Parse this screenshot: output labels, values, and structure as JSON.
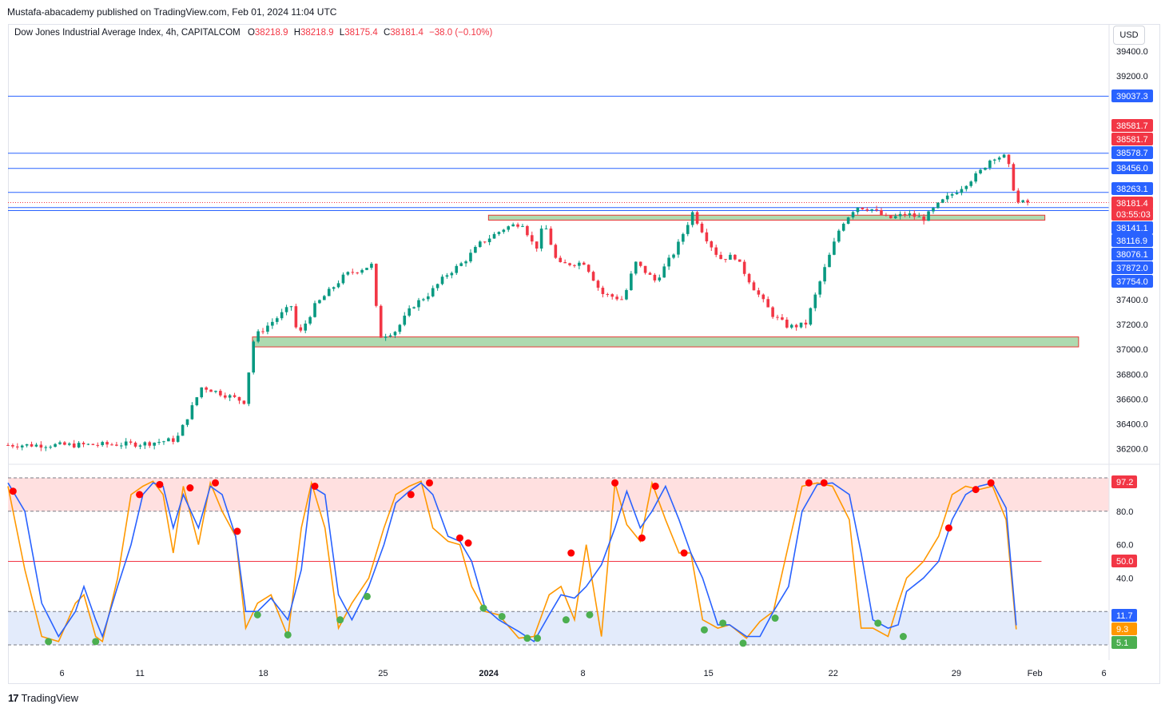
{
  "header": {
    "published": "Mustafa-abacademy published on TradingView.com, Feb 01, 2024 11:04 UTC"
  },
  "legend": {
    "symbol": "Dow Jones Industrial Average Index, 4h, CAPITALCOM",
    "o_label": "O",
    "o_value": "38218.9",
    "h_label": "H",
    "h_value": "38218.9",
    "l_label": "L",
    "l_value": "38175.4",
    "c_label": "C",
    "c_value": "38181.4",
    "change": "−38.0 (−0.10%)"
  },
  "currency": "USD",
  "footer": {
    "brand": "TradingView"
  },
  "colors": {
    "up": "#089981",
    "down": "#f23645",
    "hline": "#2962ff",
    "supply": "#a5d6a7",
    "osc_k": "#2962ff",
    "osc_d": "#ff9800",
    "ob_zone": "#ffe0e0",
    "os_zone": "#e3ebfb"
  },
  "chart_data": [
    {
      "type": "candlestick",
      "timeframe": "4h",
      "x_ticks": [
        "6",
        "11",
        "18",
        "25",
        "2024",
        "8",
        "15",
        "22",
        "29",
        "Feb",
        "6"
      ],
      "y_ticks": [
        39400.0,
        39200.0,
        37400.0,
        37200.0,
        37000.0,
        36800.0,
        36600.0,
        36400.0,
        36200.0
      ],
      "ylim": [
        36150,
        39520
      ],
      "close_path": [
        [
          0,
          36230
        ],
        [
          4,
          36230
        ],
        [
          8,
          36240
        ],
        [
          10,
          36275
        ],
        [
          11.5,
          36700
        ],
        [
          14,
          36580
        ],
        [
          14.6,
          37100
        ],
        [
          16.8,
          37350
        ],
        [
          17.2,
          37100
        ],
        [
          18.2,
          37350
        ],
        [
          20,
          37600
        ],
        [
          21.6,
          37680
        ],
        [
          22,
          37100
        ],
        [
          23,
          37150
        ],
        [
          24,
          37350
        ],
        [
          25,
          37450
        ],
        [
          26,
          37600
        ],
        [
          27,
          37700
        ],
        [
          28,
          37850
        ],
        [
          29.5,
          37980
        ],
        [
          30.5,
          38020
        ],
        [
          31.3,
          37800
        ],
        [
          31.8,
          38020
        ],
        [
          32.6,
          37680
        ],
        [
          34.2,
          37700
        ],
        [
          35.2,
          37450
        ],
        [
          36.5,
          37400
        ],
        [
          37.2,
          37700
        ],
        [
          38.4,
          37550
        ],
        [
          39.6,
          37800
        ],
        [
          40.6,
          38100
        ],
        [
          41.4,
          37900
        ],
        [
          42.2,
          37730
        ],
        [
          43.1,
          37750
        ],
        [
          44.3,
          37480
        ],
        [
          45.4,
          37270
        ],
        [
          46.3,
          37180
        ],
        [
          47.3,
          37200
        ],
        [
          48.3,
          37600
        ],
        [
          49.4,
          38000
        ],
        [
          50.3,
          38150
        ],
        [
          51.2,
          38130
        ],
        [
          52.2,
          38050
        ],
        [
          53.3,
          38090
        ],
        [
          54.3,
          38050
        ],
        [
          55.3,
          38180
        ],
        [
          56.5,
          38300
        ],
        [
          57.6,
          38420
        ],
        [
          58.4,
          38550
        ],
        [
          59.2,
          38550
        ],
        [
          59.5,
          38400
        ],
        [
          59.8,
          38180
        ],
        [
          60.5,
          38181.4
        ]
      ],
      "hlines": [
        39037.3,
        38578.7,
        38456.0,
        38263.1,
        38141.1,
        38116.9
      ],
      "price_labels": [
        {
          "value": "39037.3",
          "color": "#2962ff"
        },
        {
          "value": "38581.7",
          "color": "#f23645"
        },
        {
          "value": "38581.7",
          "color": "#f23645"
        },
        {
          "value": "38578.7",
          "color": "#2962ff"
        },
        {
          "value": "38456.0",
          "color": "#2962ff"
        },
        {
          "value": "38263.1",
          "color": "#2962ff"
        },
        {
          "value": "38181.4",
          "color": "#f23645"
        },
        {
          "value": "03:55:03",
          "color": "#f23645"
        },
        {
          "value": "38141.1",
          "color": "#2962ff"
        },
        {
          "value": "38116.9",
          "color": "#2962ff"
        },
        {
          "value": "38076.1",
          "color": "#2962ff"
        },
        {
          "value": "37872.0",
          "color": "#2962ff"
        },
        {
          "value": "37754.0",
          "color": "#2962ff"
        }
      ],
      "zones": [
        {
          "from": 38040,
          "to": 38080,
          "x_start": 28.5,
          "x_end": 61.5
        },
        {
          "from": 37020,
          "to": 37100,
          "x_start": 14.5,
          "x_end": 63.5
        }
      ]
    },
    {
      "type": "line",
      "name": "Stochastic RSI",
      "y_ticks": [
        80.0,
        60.0,
        40.0
      ],
      "ylim": [
        0,
        100
      ],
      "levels": [
        100,
        80,
        50,
        20,
        0
      ],
      "value_labels": [
        {
          "value": "97.2",
          "color": "#f23645"
        },
        {
          "value": "50.0",
          "color": "#f23645"
        },
        {
          "value": "11.7",
          "color": "#2962ff"
        },
        {
          "value": "9.3",
          "color": "#ff9800"
        },
        {
          "value": "5.1",
          "color": "#4caf50"
        }
      ],
      "series": [
        {
          "color": "#ff9800",
          "points": [
            [
              0,
              95
            ],
            [
              1,
              45
            ],
            [
              2,
              5
            ],
            [
              3,
              2
            ],
            [
              4,
              25
            ],
            [
              4.5,
              30
            ],
            [
              5.2,
              5
            ],
            [
              5.6,
              2
            ],
            [
              6.5,
              40
            ],
            [
              7.3,
              90
            ],
            [
              8,
              95
            ],
            [
              8.6,
              98
            ],
            [
              9.2,
              90
            ],
            [
              9.8,
              55
            ],
            [
              10.4,
              95
            ],
            [
              11.3,
              60
            ],
            [
              12,
              97
            ],
            [
              12.7,
              80
            ],
            [
              13.5,
              65
            ],
            [
              14.1,
              10
            ],
            [
              14.8,
              25
            ],
            [
              15.6,
              30
            ],
            [
              16.6,
              5
            ],
            [
              17.4,
              70
            ],
            [
              18,
              97
            ],
            [
              18.8,
              70
            ],
            [
              19.6,
              10
            ],
            [
              20.4,
              25
            ],
            [
              21.4,
              40
            ],
            [
              22.3,
              70
            ],
            [
              23,
              90
            ],
            [
              23.8,
              95
            ],
            [
              24.5,
              98
            ],
            [
              25.2,
              70
            ],
            [
              26.1,
              62
            ],
            [
              26.8,
              60
            ],
            [
              27.5,
              35
            ],
            [
              28.3,
              20
            ],
            [
              29.1,
              18
            ],
            [
              30.3,
              4
            ],
            [
              31.2,
              5
            ],
            [
              32.1,
              30
            ],
            [
              32.8,
              35
            ],
            [
              33.6,
              15
            ],
            [
              34.3,
              60
            ],
            [
              35.2,
              5
            ],
            [
              36,
              97
            ],
            [
              36.7,
              72
            ],
            [
              37.5,
              62
            ],
            [
              38.2,
              97
            ],
            [
              39,
              75
            ],
            [
              39.8,
              55
            ],
            [
              40.5,
              55
            ],
            [
              41.2,
              15
            ],
            [
              42.1,
              10
            ],
            [
              42.8,
              12
            ],
            [
              43.8,
              4
            ],
            [
              44.6,
              14
            ],
            [
              45.4,
              20
            ],
            [
              46.3,
              60
            ],
            [
              47.1,
              95
            ],
            [
              48,
              97
            ],
            [
              48.9,
              95
            ],
            [
              49.9,
              75
            ],
            [
              50.6,
              10
            ],
            [
              51.3,
              10
            ],
            [
              52.2,
              5
            ],
            [
              52.8,
              25
            ],
            [
              53.3,
              40
            ],
            [
              54.3,
              50
            ],
            [
              55.2,
              65
            ],
            [
              56,
              90
            ],
            [
              56.8,
              95
            ],
            [
              57.6,
              93
            ],
            [
              58.4,
              95
            ],
            [
              59.2,
              75
            ],
            [
              59.8,
              9.3
            ]
          ]
        },
        {
          "color": "#2962ff",
          "points": [
            [
              0,
              97
            ],
            [
              1,
              80
            ],
            [
              2,
              25
            ],
            [
              3,
              5
            ],
            [
              4,
              20
            ],
            [
              4.5,
              35
            ],
            [
              5.2,
              15
            ],
            [
              5.6,
              5
            ],
            [
              6.5,
              35
            ],
            [
              7.3,
              60
            ],
            [
              8,
              90
            ],
            [
              8.6,
              97
            ],
            [
              9.2,
              95
            ],
            [
              9.8,
              70
            ],
            [
              10.4,
              90
            ],
            [
              11.3,
              70
            ],
            [
              12,
              95
            ],
            [
              12.7,
              90
            ],
            [
              13.5,
              65
            ],
            [
              14.1,
              20
            ],
            [
              14.8,
              20
            ],
            [
              15.6,
              28
            ],
            [
              16.6,
              15
            ],
            [
              17.4,
              45
            ],
            [
              18,
              95
            ],
            [
              18.8,
              90
            ],
            [
              19.6,
              30
            ],
            [
              20.4,
              15
            ],
            [
              21.4,
              35
            ],
            [
              22.3,
              60
            ],
            [
              23,
              85
            ],
            [
              23.8,
              92
            ],
            [
              24.5,
              97
            ],
            [
              25.2,
              90
            ],
            [
              26.1,
              65
            ],
            [
              26.8,
              62
            ],
            [
              27.5,
              50
            ],
            [
              28.3,
              22
            ],
            [
              29.1,
              15
            ],
            [
              30.3,
              8
            ],
            [
              31.2,
              2
            ],
            [
              32.1,
              18
            ],
            [
              32.8,
              30
            ],
            [
              33.6,
              28
            ],
            [
              34.3,
              35
            ],
            [
              35.2,
              48
            ],
            [
              36,
              70
            ],
            [
              36.7,
              92
            ],
            [
              37.5,
              70
            ],
            [
              38.2,
              80
            ],
            [
              39,
              95
            ],
            [
              39.8,
              75
            ],
            [
              40.5,
              55
            ],
            [
              41.2,
              40
            ],
            [
              42.1,
              12
            ],
            [
              42.8,
              12
            ],
            [
              43.8,
              5
            ],
            [
              44.6,
              5
            ],
            [
              45.4,
              20
            ],
            [
              46.3,
              35
            ],
            [
              47.1,
              80
            ],
            [
              48,
              96
            ],
            [
              48.9,
              97
            ],
            [
              49.9,
              90
            ],
            [
              50.6,
              55
            ],
            [
              51.3,
              15
            ],
            [
              52.2,
              10
            ],
            [
              52.8,
              12
            ],
            [
              53.3,
              32
            ],
            [
              54.3,
              40
            ],
            [
              55.2,
              50
            ],
            [
              56,
              75
            ],
            [
              56.8,
              90
            ],
            [
              57.6,
              95
            ],
            [
              58.4,
              97
            ],
            [
              59.2,
              82
            ],
            [
              59.8,
              11.7
            ]
          ]
        }
      ]
    }
  ]
}
